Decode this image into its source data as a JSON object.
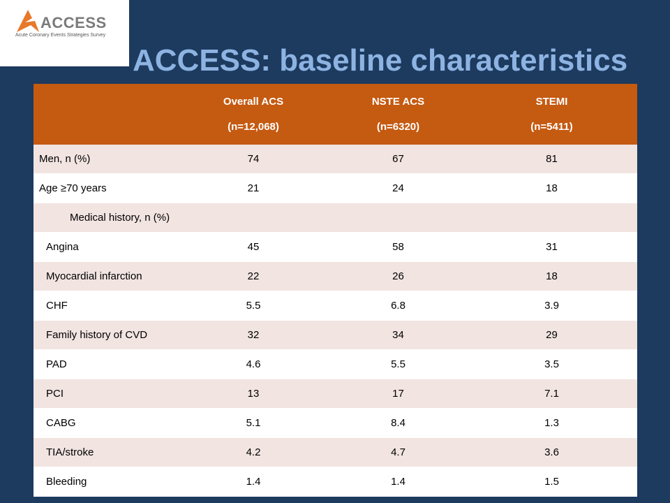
{
  "logo": {
    "name": "ACCESS",
    "subtitle": "Acute Coronary Events Strategies Survey"
  },
  "title": "ACCESS: baseline characteristics",
  "table": {
    "columns": [
      {
        "name": "Overall ACS",
        "n": "(n=12,068)"
      },
      {
        "name": "NSTE ACS",
        "n": "(n=6320)"
      },
      {
        "name": "STEMI",
        "n": "(n=5411)"
      }
    ],
    "rows": [
      {
        "label": "Men, n (%)",
        "values": [
          74,
          67,
          81
        ]
      },
      {
        "label": "Age ≥70 years",
        "values": [
          21,
          24,
          18
        ]
      },
      {
        "label": "Medical history, n (%)",
        "values": []
      },
      {
        "label": "Angina",
        "values": [
          45,
          58,
          31
        ]
      },
      {
        "label": "Myocardial infarction",
        "values": [
          22,
          26,
          18
        ]
      },
      {
        "label": "CHF",
        "values": [
          5.5,
          6.8,
          3.9
        ]
      },
      {
        "label": "Family history of CVD",
        "values": [
          32,
          34,
          29
        ]
      },
      {
        "label": "PAD",
        "values": [
          4.6,
          5.5,
          3.5
        ]
      },
      {
        "label": "PCI",
        "values": [
          13,
          17,
          7.1
        ]
      },
      {
        "label": "CABG",
        "values": [
          5.1,
          8.4,
          1.3
        ]
      },
      {
        "label": "TIA/stroke",
        "values": [
          4.2,
          4.7,
          3.6
        ]
      },
      {
        "label": "Bleeding",
        "values": [
          1.4,
          1.4,
          1.5
        ]
      }
    ]
  }
}
